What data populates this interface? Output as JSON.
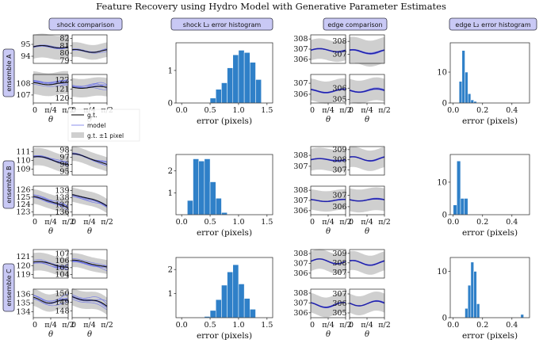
{
  "figure": {
    "title": "Feature Recovery using Hydro Model with Generative Parameter Estimates"
  },
  "column_headers": [
    "shock comparison",
    "shock L₂ error histogram",
    "edge comparison",
    "edge L₂ error histogram"
  ],
  "row_labels": [
    "ensemble A",
    "ensemble B",
    "ensemble C"
  ],
  "legend": {
    "gt": "g.t.",
    "model": "model",
    "band": "g.t. ±1 pixel"
  },
  "colors": {
    "truth": "#111111",
    "model": "#6f76e8",
    "model_mean": "#1f1fa8",
    "band": "#cfcfcf",
    "bar": "#2f80c8",
    "bar_edge": "#ffffff",
    "header_fill": "#c9c9f5",
    "header_stroke": "#333344"
  },
  "small_axes": {
    "x_tick_labels": [
      "0",
      "π/4",
      "π/2"
    ],
    "x_label": "θ"
  },
  "chart_data": [
    {
      "type": "line",
      "id": "A-shock-1",
      "row": 0,
      "col": 0,
      "sub": 0,
      "yticks": [
        94,
        95
      ],
      "ylim": [
        93.4,
        95.8
      ],
      "center": 94.8,
      "band": 1.0,
      "amp": 0.1,
      "spread": 0.15
    },
    {
      "type": "line",
      "id": "A-shock-2",
      "row": 0,
      "col": 0,
      "sub": 1,
      "yticks": [
        79,
        80,
        81,
        82
      ],
      "ylim": [
        78.6,
        82.5
      ],
      "center": 80.3,
      "band": 1.0,
      "amp": 0.2,
      "spread": 0.2
    },
    {
      "type": "line",
      "id": "A-shock-3",
      "row": 0,
      "col": 0,
      "sub": 2,
      "yticks": [
        107,
        108
      ],
      "ylim": [
        106.3,
        108.8
      ],
      "center": 108.0,
      "band": 1.0,
      "amp": 0.1,
      "spread": 0.5
    },
    {
      "type": "line",
      "id": "A-shock-4",
      "row": 0,
      "col": 0,
      "sub": 3,
      "yticks": [
        120,
        121,
        122
      ],
      "ylim": [
        119.5,
        122.6
      ],
      "center": 121.2,
      "band": 1.0,
      "amp": 0.1,
      "spread": 0.45
    },
    {
      "type": "bar",
      "id": "A-shock-hist",
      "row": 0,
      "col": 1,
      "xlabel": "error (pixels)",
      "xticks": [
        "0.0",
        "0.5",
        "1.0",
        "1.5"
      ],
      "xlim": [
        -0.1,
        1.6
      ],
      "yticks": [
        0,
        1
      ],
      "ylim": [
        0,
        1.85
      ],
      "bin_start": 0.5,
      "bin_width": 0.1,
      "values": [
        0.15,
        0.42,
        0.62,
        1.08,
        1.48,
        1.62,
        1.55,
        1.25,
        0.72
      ]
    },
    {
      "type": "line",
      "id": "A-edge-1",
      "row": 0,
      "col": 2,
      "sub": 0,
      "yticks": [
        306,
        307,
        308
      ],
      "ylim": [
        305.6,
        308.4
      ],
      "center": 306.9,
      "band": 1.0,
      "amp": 0.15,
      "spread": 0.1
    },
    {
      "type": "line",
      "id": "A-edge-2",
      "row": 0,
      "col": 2,
      "sub": 1,
      "yticks": [
        307,
        308
      ],
      "ylim": [
        306.3,
        308.5
      ],
      "center": 307.2,
      "band": 1.0,
      "amp": 0.15,
      "spread": 0.1
    },
    {
      "type": "line",
      "id": "A-edge-3",
      "row": 0,
      "col": 2,
      "sub": 2,
      "yticks": [
        306,
        307
      ],
      "ylim": [
        305.2,
        307.8
      ],
      "center": 306.3,
      "band": 1.0,
      "amp": 0.15,
      "spread": 0.1
    },
    {
      "type": "line",
      "id": "A-edge-4",
      "row": 0,
      "col": 2,
      "sub": 3,
      "yticks": [
        305,
        306
      ],
      "ylim": [
        304.7,
        307.2
      ],
      "center": 305.8,
      "band": 1.0,
      "amp": 0.15,
      "spread": 0.1
    },
    {
      "type": "bar",
      "id": "A-edge-hist",
      "row": 0,
      "col": 3,
      "xlabel": "error (pixels)",
      "xticks": [
        "0.0",
        "0.2",
        "0.4"
      ],
      "xlim": [
        -0.02,
        0.52
      ],
      "yticks": [
        0,
        10
      ],
      "ylim": [
        0,
        19.5
      ],
      "bin_start": 0.04,
      "bin_width": 0.02,
      "values": [
        7,
        17,
        10,
        3,
        1,
        0.5
      ]
    },
    {
      "type": "line",
      "id": "B-shock-1",
      "row": 1,
      "col": 0,
      "sub": 0,
      "yticks": [
        109,
        110,
        111
      ],
      "ylim": [
        108.3,
        111.6
      ],
      "center": 110.4,
      "band": 1.0,
      "amp": 0.1,
      "drop": 0.9,
      "spread": 0.3
    },
    {
      "type": "line",
      "id": "B-shock-2",
      "row": 1,
      "col": 0,
      "sub": 1,
      "yticks": [
        95,
        96,
        97,
        98
      ],
      "ylim": [
        94.5,
        98.5
      ],
      "center": 97.4,
      "band": 1.0,
      "amp": 0.1,
      "drop": 1.5,
      "spread": 0.3
    },
    {
      "type": "line",
      "id": "B-shock-3",
      "row": 1,
      "col": 0,
      "sub": 2,
      "yticks": [
        123,
        124,
        125,
        126
      ],
      "ylim": [
        122.6,
        126.5
      ],
      "center": 125.0,
      "band": 1.0,
      "amp": 0.1,
      "drop": 1.6,
      "spread": 0.5
    },
    {
      "type": "line",
      "id": "B-shock-4",
      "row": 1,
      "col": 0,
      "sub": 3,
      "yticks": [
        136,
        137,
        138,
        139
      ],
      "ylim": [
        135.6,
        139.6
      ],
      "center": 138.4,
      "band": 1.0,
      "amp": 0.1,
      "drop": 1.6,
      "spread": 0.5
    },
    {
      "type": "bar",
      "id": "B-shock-hist",
      "row": 1,
      "col": 1,
      "xlabel": "error (pixels)",
      "xticks": [
        "0.0",
        "0.5",
        "1.0",
        "1.5"
      ],
      "xlim": [
        -0.1,
        1.6
      ],
      "yticks": [
        1,
        2
      ],
      "ylim": [
        0,
        2.75
      ],
      "bin_start": 0.1,
      "bin_width": 0.1,
      "values": [
        0.65,
        2.55,
        2.45,
        2.55,
        1.5,
        0.75,
        0.1
      ]
    },
    {
      "type": "line",
      "id": "B-edge-1",
      "row": 1,
      "col": 2,
      "sub": 0,
      "yticks": [
        307,
        308
      ],
      "ylim": [
        306.2,
        308.8
      ],
      "center": 307.6,
      "band": 1.0,
      "amp": 0.1,
      "spread": 0.08
    },
    {
      "type": "line",
      "id": "B-edge-2",
      "row": 1,
      "col": 2,
      "sub": 1,
      "yticks": [
        307,
        308,
        309
      ],
      "ylim": [
        306.5,
        309.3
      ],
      "center": 308.1,
      "band": 1.0,
      "amp": 0.2,
      "spread": 0.08
    },
    {
      "type": "line",
      "id": "B-edge-3",
      "row": 1,
      "col": 2,
      "sub": 2,
      "yticks": [
        306,
        307,
        308
      ],
      "ylim": [
        305.6,
        308.4
      ],
      "center": 307.0,
      "band": 1.0,
      "amp": 0.1,
      "spread": 0.08
    },
    {
      "type": "line",
      "id": "B-edge-4",
      "row": 1,
      "col": 2,
      "sub": 3,
      "yticks": [
        306,
        307
      ],
      "ylim": [
        305.3,
        307.8
      ],
      "center": 306.6,
      "band": 1.0,
      "amp": 0.1,
      "spread": 0.08
    },
    {
      "type": "bar",
      "id": "B-edge-hist",
      "row": 1,
      "col": 3,
      "xlabel": "error (pixels)",
      "xticks": [
        "0.0",
        "0.2",
        "0.4"
      ],
      "xlim": [
        -0.02,
        0.52
      ],
      "yticks": [
        0,
        10
      ],
      "ylim": [
        0,
        18.5
      ],
      "bin_start": 0.0,
      "bin_width": 0.025,
      "values": [
        3,
        16.5,
        5,
        5
      ]
    },
    {
      "type": "line",
      "id": "C-shock-1",
      "row": 2,
      "col": 0,
      "sub": 0,
      "yticks": [
        119,
        120,
        121
      ],
      "ylim": [
        118.6,
        121.8
      ],
      "center": 120.4,
      "band": 1.0,
      "amp": 0.1,
      "drop": 0.6,
      "spread": 0.5
    },
    {
      "type": "line",
      "id": "C-shock-2",
      "row": 2,
      "col": 0,
      "sub": 1,
      "yticks": [
        104,
        105,
        106,
        107
      ],
      "ylim": [
        103.5,
        107.6
      ],
      "center": 106.0,
      "band": 1.0,
      "amp": 0.1,
      "drop": 1.0,
      "spread": 0.5
    },
    {
      "type": "line",
      "id": "C-shock-3",
      "row": 2,
      "col": 0,
      "sub": 2,
      "yticks": [
        134,
        135,
        136
      ],
      "ylim": [
        133.3,
        136.6
      ],
      "center": 135.4,
      "band": 1.0,
      "amp": 0.3,
      "drop": 0.4,
      "spread": 0.6
    },
    {
      "type": "line",
      "id": "C-shock-4",
      "row": 2,
      "col": 0,
      "sub": 3,
      "yticks": [
        148,
        149,
        150
      ],
      "ylim": [
        147.2,
        150.5
      ],
      "center": 149.6,
      "band": 1.0,
      "amp": 0.2,
      "drop": 1.1,
      "spread": 0.6
    },
    {
      "type": "bar",
      "id": "C-shock-hist",
      "row": 2,
      "col": 1,
      "xlabel": "error (pixels)",
      "xticks": [
        "0.0",
        "0.5",
        "1.0",
        "1.5"
      ],
      "xlim": [
        -0.1,
        1.6
      ],
      "yticks": [
        1,
        2
      ],
      "ylim": [
        0,
        2.5
      ],
      "bin_start": 0.4,
      "bin_width": 0.1,
      "values": [
        0.05,
        0.3,
        0.75,
        1.35,
        1.9,
        2.2,
        1.4,
        0.8,
        0.35
      ]
    },
    {
      "type": "line",
      "id": "C-edge-1",
      "row": 2,
      "col": 2,
      "sub": 0,
      "yticks": [
        306,
        307,
        308
      ],
      "ylim": [
        305.5,
        308.4
      ],
      "center": 307.2,
      "band": 1.0,
      "amp": 0.25,
      "spread": 0.1
    },
    {
      "type": "line",
      "id": "C-edge-2",
      "row": 2,
      "col": 2,
      "sub": 1,
      "yticks": [
        307,
        308,
        309
      ],
      "ylim": [
        306.4,
        309.4
      ],
      "center": 308.0,
      "band": 1.0,
      "amp": 0.25,
      "spread": 0.1
    },
    {
      "type": "line",
      "id": "C-edge-3",
      "row": 2,
      "col": 2,
      "sub": 2,
      "yticks": [
        306,
        307,
        308
      ],
      "ylim": [
        305.5,
        308.4
      ],
      "center": 306.8,
      "band": 1.0,
      "amp": 0.25,
      "spread": 0.1
    },
    {
      "type": "line",
      "id": "C-edge-4",
      "row": 2,
      "col": 2,
      "sub": 3,
      "yticks": [
        305,
        306,
        307
      ],
      "ylim": [
        304.5,
        307.5
      ],
      "center": 306.0,
      "band": 1.0,
      "amp": 0.25,
      "spread": 0.1
    },
    {
      "type": "bar",
      "id": "C-edge-hist",
      "row": 2,
      "col": 3,
      "xlabel": "error (pixels)",
      "xticks": [
        "0.0",
        "0.2",
        "0.4"
      ],
      "xlim": [
        -0.02,
        0.52
      ],
      "yticks": [
        0,
        10
      ],
      "ylim": [
        0,
        13
      ],
      "bin_start": 0.08,
      "bin_width": 0.02,
      "values": [
        2,
        7,
        12,
        10,
        3,
        0,
        0,
        0,
        0,
        0,
        0,
        0,
        0,
        0,
        0,
        0,
        0,
        0,
        0,
        0.7
      ]
    }
  ]
}
